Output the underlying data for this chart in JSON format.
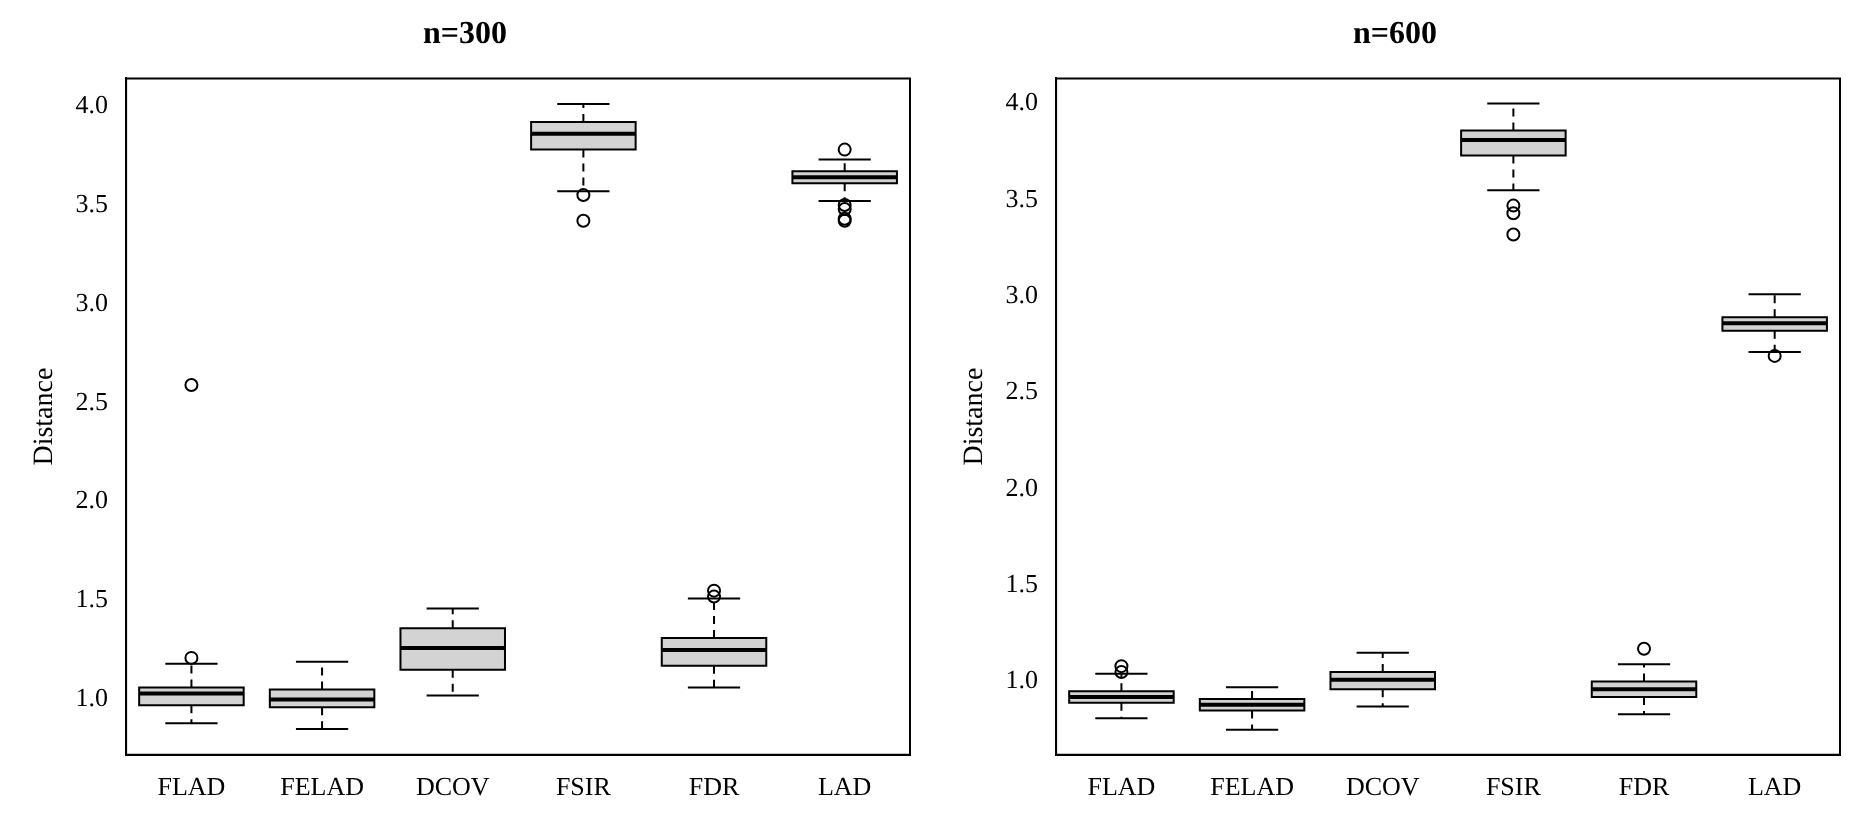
{
  "chart_data": [
    {
      "type": "box",
      "title": "n=300",
      "ylabel": "Distance",
      "categories": [
        "FLAD",
        "FELAD",
        "DCOV",
        "FSIR",
        "FDR",
        "LAD"
      ],
      "color": "#d3d3d3",
      "grid": false,
      "legend": false,
      "ylim": [
        0.72,
        4.14
      ],
      "yticks": [
        {
          "value": 1,
          "label": "1.0"
        },
        {
          "value": 1.5,
          "label": "1.5"
        },
        {
          "value": 2,
          "label": "2.0"
        },
        {
          "value": 2.5,
          "label": "2.5"
        },
        {
          "value": 3,
          "label": "3.0"
        },
        {
          "value": 3.5,
          "label": "3.5"
        },
        {
          "value": 4,
          "label": "4.0"
        }
      ],
      "boxes": [
        {
          "low": 0.88,
          "q1": 0.97,
          "median": 1.03,
          "q3": 1.06,
          "high": 1.18,
          "outliers": [
            1.21,
            2.59
          ]
        },
        {
          "low": 0.85,
          "q1": 0.96,
          "median": 1.0,
          "q3": 1.05,
          "high": 1.19
        },
        {
          "low": 1.02,
          "q1": 1.15,
          "median": 1.26,
          "q3": 1.36,
          "high": 1.46
        },
        {
          "low": 3.57,
          "q1": 3.78,
          "median": 3.86,
          "q3": 3.92,
          "high": 4.01,
          "outliers": [
            3.55,
            3.42
          ]
        },
        {
          "low": 1.06,
          "q1": 1.17,
          "median": 1.25,
          "q3": 1.31,
          "high": 1.51,
          "outliers": [
            1.55,
            1.52
          ]
        },
        {
          "low": 3.52,
          "q1": 3.61,
          "median": 3.64,
          "q3": 3.67,
          "high": 3.73,
          "outliers": [
            3.78,
            3.5,
            3.48,
            3.43,
            3.42
          ]
        }
      ]
    },
    {
      "type": "box",
      "title": "n=600",
      "ylabel": "Distance",
      "categories": [
        "FLAD",
        "FELAD",
        "DCOV",
        "FSIR",
        "FDR",
        "LAD"
      ],
      "color": "#d3d3d3",
      "grid": false,
      "legend": false,
      "ylim": [
        0.62,
        4.13
      ],
      "yticks": [
        {
          "value": 1,
          "label": "1.0"
        },
        {
          "value": 1.5,
          "label": "1.5"
        },
        {
          "value": 2,
          "label": "2.0"
        },
        {
          "value": 2.5,
          "label": "2.5"
        },
        {
          "value": 3,
          "label": "3.0"
        },
        {
          "value": 3.5,
          "label": "3.5"
        },
        {
          "value": 4,
          "label": "4.0"
        }
      ],
      "boxes": [
        {
          "low": 0.81,
          "q1": 0.89,
          "median": 0.92,
          "q3": 0.95,
          "high": 1.04,
          "outliers": [
            1.08,
            1.05
          ]
        },
        {
          "low": 0.75,
          "q1": 0.85,
          "median": 0.88,
          "q3": 0.91,
          "high": 0.97
        },
        {
          "low": 0.87,
          "q1": 0.96,
          "median": 1.01,
          "q3": 1.05,
          "high": 1.15
        },
        {
          "low": 3.55,
          "q1": 3.73,
          "median": 3.81,
          "q3": 3.86,
          "high": 4.0,
          "outliers": [
            3.47,
            3.43,
            3.32
          ]
        },
        {
          "low": 0.83,
          "q1": 0.92,
          "median": 0.96,
          "q3": 1.0,
          "high": 1.09,
          "outliers": [
            1.17
          ]
        },
        {
          "low": 2.71,
          "q1": 2.82,
          "median": 2.86,
          "q3": 2.89,
          "high": 3.01,
          "outliers": [
            2.69
          ]
        }
      ]
    }
  ]
}
